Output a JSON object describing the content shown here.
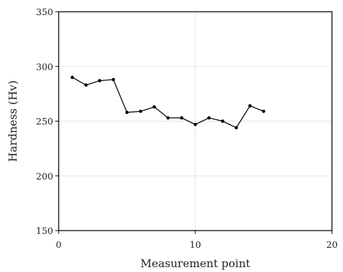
{
  "chart_data": {
    "type": "line",
    "title": "",
    "xlabel": "Measurement point",
    "ylabel": "Hardness (Hv)",
    "xlim": [
      0,
      20
    ],
    "ylim": [
      150,
      350
    ],
    "xticks": [
      0,
      10,
      20
    ],
    "yticks": [
      150,
      200,
      250,
      300,
      350
    ],
    "xtick_labels": [
      "0",
      "10",
      "20"
    ],
    "ytick_labels": [
      "150",
      "200",
      "250",
      "300",
      "350"
    ],
    "grid": true,
    "legend": "none",
    "series": [
      {
        "color": "#000000",
        "marker": "circle",
        "x": [
          1,
          2,
          3,
          4,
          5,
          6,
          7,
          8,
          9,
          10,
          11,
          12,
          13,
          14,
          15
        ],
        "y": [
          290,
          283,
          287,
          288,
          258,
          259,
          263,
          253,
          253,
          247,
          253,
          250,
          244,
          264,
          259
        ]
      }
    ]
  }
}
